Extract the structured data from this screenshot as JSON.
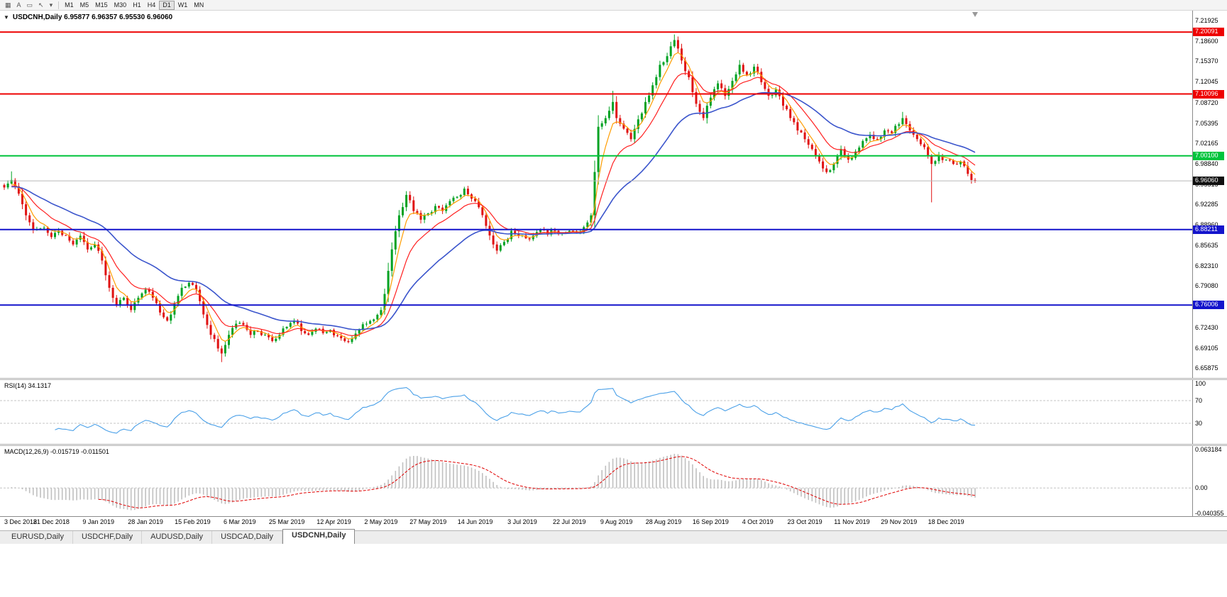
{
  "toolbar": {
    "icons": [
      {
        "name": "chart-window-icon",
        "glyph": "▦"
      },
      {
        "name": "text-annotation-icon",
        "glyph": "A"
      },
      {
        "name": "template-icon",
        "glyph": "▭"
      },
      {
        "name": "cursor-tool-icon",
        "glyph": "↖"
      },
      {
        "name": "cursor-dropdown-icon",
        "glyph": "▾"
      }
    ],
    "timeframes": [
      "M1",
      "M5",
      "M15",
      "M30",
      "H1",
      "H4",
      "D1",
      "W1",
      "MN"
    ],
    "active_timeframe": "D1"
  },
  "chart": {
    "header": {
      "collapse_glyph": "▼",
      "title_line": "USDCNH,Daily  6.95877 6.96357 6.95530 6.96060"
    },
    "colors": {
      "candle_up": "#00a222",
      "candle_down": "#e01212",
      "background": "#ffffff"
    },
    "price_range": {
      "top": 7.2355,
      "bottom": 6.6425
    },
    "y_ticks": [
      7.21925,
      7.186,
      7.1537,
      7.12045,
      7.0872,
      7.05395,
      7.02165,
      6.9884,
      6.95515,
      6.92285,
      6.8896,
      6.85635,
      6.8231,
      6.7908,
      6.75755,
      6.7243,
      6.69105,
      6.65875
    ],
    "hlines": [
      {
        "label": "7.20091",
        "value": 7.20091,
        "color": "#ee0000",
        "kind": "resistance"
      },
      {
        "label": "7.10096",
        "value": 7.10096,
        "color": "#ee0000",
        "kind": "resistance"
      },
      {
        "label": "7.00100",
        "value": 7.001,
        "color": "#00c43c",
        "kind": "pivot"
      },
      {
        "label": "6.88211",
        "value": 6.88211,
        "color": "#1414cc",
        "kind": "support"
      },
      {
        "label": "6.76006",
        "value": 6.76006,
        "color": "#1414cc",
        "kind": "support"
      }
    ],
    "price_line": {
      "label": "6.96060",
      "value": 6.9606,
      "box_color": "#101010",
      "line_color": "#b9b9b9"
    },
    "x_labels": [
      "3 Dec 2018",
      "21 Dec 2018",
      "9 Jan 2019",
      "28 Jan 2019",
      "15 Feb 2019",
      "6 Mar 2019",
      "25 Mar 2019",
      "12 Apr 2019",
      "2 May 2019",
      "27 May 2019",
      "14 Jun 2019",
      "3 Jul 2019",
      "22 Jul 2019",
      "9 Aug 2019",
      "28 Aug 2019",
      "16 Sep 2019",
      "4 Oct 2019",
      "23 Oct 2019",
      "11 Nov 2019",
      "29 Nov 2019",
      "18 Dec 2019"
    ]
  },
  "rsi": {
    "label": "RSI(14) 34.1317",
    "period": 14,
    "current": 34.1317,
    "levels": [
      100,
      70,
      30
    ],
    "color": "#4aa0e8"
  },
  "macd": {
    "label": "MACD(12,26,9) -0.015719 -0.011501",
    "fast": 12,
    "slow": 26,
    "signal": 9,
    "values": [
      -0.015719,
      -0.011501
    ],
    "hist_color": "#c0c0c0",
    "signal_color": "#e00000",
    "axis": [
      {
        "label": "0.063184",
        "value": 0.063184
      },
      {
        "label": "0.00",
        "value": 0.0
      },
      {
        "label": "-0.040355",
        "value": -0.040355
      }
    ]
  },
  "tabs": {
    "items": [
      "EURUSD,Daily",
      "USDCHF,Daily",
      "AUDUSD,Daily",
      "USDCAD,Daily",
      "USDCNH,Daily"
    ],
    "active": "USDCNH,Daily"
  },
  "chart_data": {
    "type": "candlestick",
    "symbol": "USDCNH",
    "timeframe": "Daily",
    "ohlc_current": {
      "open": 6.95877,
      "high": 6.96357,
      "low": 6.9553,
      "close": 6.9606
    },
    "candle_count": 269,
    "close_anchors": [
      [
        0,
        6.95
      ],
      [
        2,
        6.962
      ],
      [
        4,
        6.94
      ],
      [
        6,
        6.905
      ],
      [
        8,
        6.882
      ],
      [
        11,
        6.885
      ],
      [
        13,
        6.87
      ],
      [
        15,
        6.88
      ],
      [
        17,
        6.872
      ],
      [
        19,
        6.858
      ],
      [
        21,
        6.872
      ],
      [
        23,
        6.85
      ],
      [
        25,
        6.858
      ],
      [
        27,
        6.832
      ],
      [
        29,
        6.788
      ],
      [
        31,
        6.76
      ],
      [
        33,
        6.772
      ],
      [
        35,
        6.752
      ],
      [
        37,
        6.772
      ],
      [
        39,
        6.785
      ],
      [
        41,
        6.772
      ],
      [
        43,
        6.748
      ],
      [
        45,
        6.735
      ],
      [
        47,
        6.762
      ],
      [
        49,
        6.788
      ],
      [
        51,
        6.796
      ],
      [
        53,
        6.785
      ],
      [
        55,
        6.745
      ],
      [
        57,
        6.712
      ],
      [
        59,
        6.69
      ],
      [
        60,
        6.682
      ],
      [
        62,
        6.712
      ],
      [
        64,
        6.73
      ],
      [
        66,
        6.728
      ],
      [
        68,
        6.712
      ],
      [
        70,
        6.718
      ],
      [
        72,
        6.712
      ],
      [
        74,
        6.702
      ],
      [
        76,
        6.712
      ],
      [
        78,
        6.725
      ],
      [
        80,
        6.735
      ],
      [
        82,
        6.718
      ],
      [
        84,
        6.712
      ],
      [
        86,
        6.722
      ],
      [
        88,
        6.715
      ],
      [
        90,
        6.72
      ],
      [
        92,
        6.71
      ],
      [
        94,
        6.702
      ],
      [
        96,
        6.706
      ],
      [
        98,
        6.72
      ],
      [
        100,
        6.73
      ],
      [
        102,
        6.737
      ],
      [
        104,
        6.752
      ],
      [
        105,
        6.778
      ],
      [
        107,
        6.85
      ],
      [
        109,
        6.905
      ],
      [
        111,
        6.938
      ],
      [
        113,
        6.912
      ],
      [
        115,
        6.898
      ],
      [
        117,
        6.908
      ],
      [
        119,
        6.92
      ],
      [
        121,
        6.912
      ],
      [
        123,
        6.928
      ],
      [
        125,
        6.935
      ],
      [
        127,
        6.948
      ],
      [
        129,
        6.932
      ],
      [
        131,
        6.918
      ],
      [
        133,
        6.888
      ],
      [
        135,
        6.858
      ],
      [
        136,
        6.848
      ],
      [
        138,
        6.862
      ],
      [
        140,
        6.88
      ],
      [
        142,
        6.872
      ],
      [
        144,
        6.868
      ],
      [
        146,
        6.872
      ],
      [
        148,
        6.882
      ],
      [
        150,
        6.874
      ],
      [
        152,
        6.88
      ],
      [
        154,
        6.876
      ],
      [
        156,
        6.88
      ],
      [
        158,
        6.878
      ],
      [
        160,
        6.886
      ],
      [
        162,
        6.905
      ],
      [
        163,
        6.975
      ],
      [
        164,
        7.048
      ],
      [
        166,
        7.062
      ],
      [
        168,
        7.088
      ],
      [
        169,
        7.062
      ],
      [
        171,
        7.045
      ],
      [
        173,
        7.028
      ],
      [
        175,
        7.06
      ],
      [
        177,
        7.088
      ],
      [
        179,
        7.115
      ],
      [
        181,
        7.148
      ],
      [
        183,
        7.162
      ],
      [
        185,
        7.188
      ],
      [
        187,
        7.155
      ],
      [
        189,
        7.128
      ],
      [
        191,
        7.085
      ],
      [
        193,
        7.062
      ],
      [
        195,
        7.095
      ],
      [
        197,
        7.118
      ],
      [
        199,
        7.098
      ],
      [
        201,
        7.122
      ],
      [
        203,
        7.148
      ],
      [
        205,
        7.132
      ],
      [
        207,
        7.145
      ],
      [
        209,
        7.12
      ],
      [
        211,
        7.098
      ],
      [
        213,
        7.108
      ],
      [
        215,
        7.082
      ],
      [
        217,
        7.062
      ],
      [
        219,
        7.042
      ],
      [
        221,
        7.028
      ],
      [
        223,
        7.012
      ],
      [
        225,
        6.992
      ],
      [
        227,
        6.975
      ],
      [
        229,
        6.988
      ],
      [
        231,
        7.012
      ],
      [
        233,
        6.995
      ],
      [
        235,
        7.008
      ],
      [
        237,
        7.025
      ],
      [
        239,
        7.035
      ],
      [
        241,
        7.028
      ],
      [
        243,
        7.042
      ],
      [
        245,
        7.038
      ],
      [
        247,
        7.052
      ],
      [
        248,
        7.062
      ],
      [
        250,
        7.042
      ],
      [
        252,
        7.028
      ],
      [
        254,
        7.015
      ],
      [
        256,
        6.988
      ],
      [
        258,
        7.002
      ],
      [
        260,
        6.995
      ],
      [
        262,
        6.988
      ],
      [
        264,
        6.992
      ],
      [
        266,
        6.972
      ],
      [
        267,
        6.962
      ],
      [
        268,
        6.9606
      ]
    ],
    "wick_overrides": [
      {
        "i": 2,
        "high": 6.976
      },
      {
        "i": 60,
        "low": 6.668
      },
      {
        "i": 163,
        "low": 6.898
      },
      {
        "i": 168,
        "high": 7.106
      },
      {
        "i": 185,
        "high": 7.197
      },
      {
        "i": 248,
        "high": 7.072
      },
      {
        "i": 256,
        "low": 6.926
      }
    ],
    "noise_amp": 0.0045,
    "wick_amp": 0.004,
    "seed": 11,
    "ma": [
      {
        "period": 5,
        "color": "#ff9d00"
      },
      {
        "period": 13,
        "color": "#ff2020"
      },
      {
        "period": 34,
        "color": "#3b55cc"
      }
    ]
  }
}
